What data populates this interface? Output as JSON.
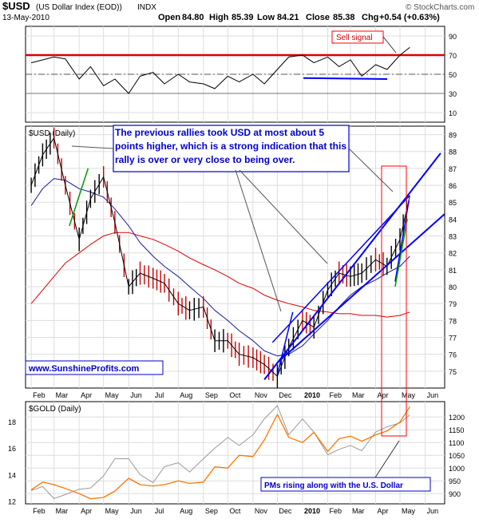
{
  "header": {
    "symbol": "$USD",
    "description": "(US Dollar Index (EOD))",
    "exchange": "INDX",
    "date": "13-May-2010",
    "open_label": "Open",
    "open": "84.80",
    "high_label": "High",
    "high": "85.39",
    "low_label": "Low",
    "low": "84.21",
    "close_label": "Close",
    "close": "85.38",
    "chg_label": "Chg",
    "chg": "+0.54 (+0.63%)",
    "watermark": "© StockCharts.com"
  },
  "colors": {
    "price_up": "#000000",
    "price_down": "#cc0000",
    "ma_short": "#1a1aa0",
    "ma_long": "#dd0000",
    "channel": "#0000ff",
    "signal_line": "#dd0000",
    "gold": "#ff7700",
    "usd_overlay": "#9a9a9a",
    "annotation_text": "#0000cc"
  },
  "annotations": {
    "sell_signal": "Sell signal",
    "main_note": "The previous rallies took USD at most about 5 points higher, which is a strong indication that this rally is over or very close to being over.",
    "website": "www.SunshineProfits.com",
    "gold_note": "PMs rising along with the U.S. Dollar"
  },
  "chart_data": [
    {
      "panel": "indicator",
      "type": "line",
      "ylim": [
        0,
        100
      ],
      "y_ticks": [
        10,
        30,
        50,
        70,
        90
      ],
      "signal_levels": [
        70,
        50,
        30
      ],
      "x": [
        "2009-02-01",
        "2009-02-15",
        "2009-03-01",
        "2009-03-15",
        "2009-04-01",
        "2009-04-15",
        "2009-05-01",
        "2009-05-15",
        "2009-06-01",
        "2009-06-15",
        "2009-07-01",
        "2009-07-15",
        "2009-08-01",
        "2009-08-15",
        "2009-09-01",
        "2009-09-15",
        "2009-10-01",
        "2009-10-15",
        "2009-11-01",
        "2009-11-15",
        "2009-12-01",
        "2009-12-15",
        "2010-01-01",
        "2010-01-15",
        "2010-02-01",
        "2010-02-15",
        "2010-03-01",
        "2010-03-15",
        "2010-04-01",
        "2010-04-15",
        "2010-05-01",
        "2010-05-13"
      ],
      "values": [
        62,
        65,
        68,
        66,
        45,
        58,
        38,
        45,
        30,
        48,
        52,
        40,
        50,
        42,
        40,
        35,
        48,
        42,
        50,
        40,
        55,
        68,
        70,
        62,
        68,
        58,
        65,
        48,
        60,
        55,
        70,
        78
      ]
    },
    {
      "panel": "price",
      "type": "line",
      "title": "$USD (Daily)",
      "ylim": [
        74,
        89.5
      ],
      "y_ticks": [
        75,
        76,
        77,
        78,
        79,
        80,
        81,
        82,
        83,
        84,
        85,
        86,
        87,
        88,
        89
      ],
      "x_ticks": [
        "Feb",
        "Mar",
        "Apr",
        "May",
        "Jun",
        "Jul",
        "Aug",
        "Sep",
        "Oct",
        "Nov",
        "Dec",
        "2010",
        "Feb",
        "Mar",
        "Apr",
        "May",
        "Jun"
      ],
      "x": [
        "2009-02-01",
        "2009-02-15",
        "2009-03-01",
        "2009-03-15",
        "2009-04-01",
        "2009-04-15",
        "2009-05-01",
        "2009-05-15",
        "2009-06-01",
        "2009-06-15",
        "2009-07-01",
        "2009-07-15",
        "2009-08-01",
        "2009-08-15",
        "2009-09-01",
        "2009-09-15",
        "2009-10-01",
        "2009-10-15",
        "2009-11-01",
        "2009-11-15",
        "2009-12-01",
        "2009-12-15",
        "2010-01-01",
        "2010-01-15",
        "2010-02-01",
        "2010-02-15",
        "2010-03-01",
        "2010-03-15",
        "2010-04-01",
        "2010-04-15",
        "2010-05-01",
        "2010-05-13"
      ],
      "series": [
        {
          "values": [
            86.0,
            87.8,
            88.8,
            86.0,
            82.8,
            85.2,
            86.5,
            83.8,
            80.0,
            80.8,
            80.5,
            80.2,
            79.0,
            78.6,
            78.8,
            76.8,
            76.8,
            76.0,
            75.8,
            75.4,
            74.7,
            76.4,
            78.0,
            77.6,
            79.8,
            80.8,
            80.6,
            80.8,
            81.6,
            81.2,
            82.8,
            85.38
          ]
        },
        {
          "values": [
            84.8,
            85.8,
            86.4,
            86.3,
            85.8,
            85.6,
            85.3,
            84.6,
            83.6,
            82.6,
            81.8,
            81.2,
            80.6,
            80.0,
            79.3,
            78.6,
            78.0,
            77.4,
            76.8,
            76.2,
            75.9,
            76.0,
            76.5,
            77.2,
            78.0,
            78.8,
            79.5,
            80.0,
            80.4,
            80.8,
            81.2,
            81.8
          ]
        },
        {
          "values": [
            79.0,
            79.8,
            80.6,
            81.4,
            82.0,
            82.5,
            83.0,
            83.2,
            83.2,
            83.0,
            82.8,
            82.5,
            82.1,
            81.7,
            81.3,
            81.0,
            80.6,
            80.2,
            79.9,
            79.5,
            79.2,
            79.0,
            78.8,
            78.6,
            78.5,
            78.4,
            78.4,
            78.3,
            78.3,
            78.2,
            78.3,
            78.5
          ]
        }
      ]
    },
    {
      "panel": "gold",
      "type": "line",
      "title": "$GOLD (Daily)",
      "ylim": [
        860,
        1260
      ],
      "y_ticks": [
        900,
        950,
        1000,
        1050,
        1100,
        1150,
        1200
      ],
      "y2_ticks": [
        12,
        14,
        16,
        18
      ],
      "x_ticks": [
        "Feb",
        "Mar",
        "Apr",
        "May",
        "Jun",
        "Jul",
        "Aug",
        "Sep",
        "Oct",
        "Nov",
        "Dec",
        "2010",
        "Feb",
        "Mar",
        "Apr",
        "May",
        "Jun"
      ],
      "x": [
        "2009-02-01",
        "2009-02-15",
        "2009-03-01",
        "2009-03-15",
        "2009-04-01",
        "2009-04-15",
        "2009-05-01",
        "2009-05-15",
        "2009-06-01",
        "2009-06-15",
        "2009-07-01",
        "2009-07-15",
        "2009-08-01",
        "2009-08-15",
        "2009-09-01",
        "2009-09-15",
        "2009-10-01",
        "2009-10-15",
        "2009-11-01",
        "2009-11-15",
        "2009-12-01",
        "2009-12-15",
        "2010-01-01",
        "2010-01-15",
        "2010-02-01",
        "2010-02-15",
        "2010-03-01",
        "2010-03-15",
        "2010-04-01",
        "2010-04-15",
        "2010-05-01",
        "2010-05-13"
      ],
      "series": [
        {
          "values": [
            915,
            945,
            935,
            920,
            900,
            880,
            885,
            910,
            960,
            935,
            930,
            935,
            950,
            940,
            945,
            1005,
            1000,
            1050,
            1045,
            1110,
            1210,
            1120,
            1100,
            1140,
            1065,
            1115,
            1125,
            1105,
            1130,
            1145,
            1180,
            1240
          ]
        },
        {
          "values": [
            12.8,
            13.1,
            12.2,
            12.5,
            12.9,
            13.0,
            13.9,
            15.2,
            15.2,
            14.0,
            13.4,
            14.6,
            14.9,
            14.2,
            15.2,
            16.0,
            16.8,
            16.2,
            17.0,
            18.2,
            19.2,
            17.0,
            18.2,
            17.2,
            15.5,
            15.9,
            16.2,
            15.8,
            17.2,
            17.6,
            17.9,
            18.5
          ]
        }
      ]
    }
  ]
}
